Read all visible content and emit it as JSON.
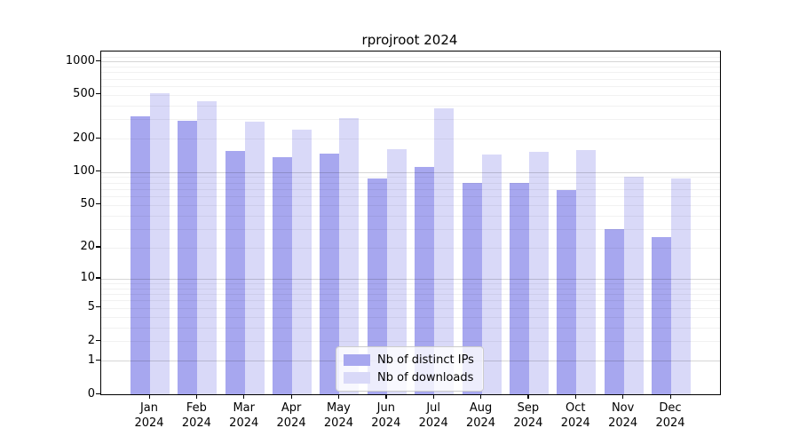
{
  "chart_data": {
    "type": "bar",
    "title": "rprojroot 2024",
    "categories": [
      "Jan",
      "Feb",
      "Mar",
      "Apr",
      "May",
      "Jun",
      "Jul",
      "Aug",
      "Sep",
      "Oct",
      "Nov",
      "Dec"
    ],
    "year": "2024",
    "series": [
      {
        "name": "Nb of distinct IPs",
        "color": "#a7a7ef",
        "values": [
          320,
          292,
          156,
          136,
          146,
          88,
          112,
          80,
          80,
          68,
          30,
          25
        ]
      },
      {
        "name": "Nb of downloads",
        "color": "#d9d9f8",
        "values": [
          520,
          440,
          285,
          240,
          310,
          162,
          378,
          145,
          153,
          157,
          90,
          87
        ]
      }
    ],
    "y_axis": {
      "scale": "log10(1+y)",
      "ticks": [
        1000,
        500,
        200,
        100,
        50,
        20,
        10,
        5,
        2,
        1,
        0
      ],
      "max": 1230
    },
    "grid": {
      "minor": [
        2,
        3,
        4,
        5,
        6,
        7,
        8,
        9,
        20,
        30,
        40,
        50,
        60,
        70,
        80,
        90,
        200,
        300,
        400,
        500,
        600,
        700,
        800,
        900,
        1100
      ],
      "major": [
        1,
        10,
        100,
        1000
      ]
    },
    "legend": {
      "position": "lower-center",
      "entries": [
        "Nb of distinct IPs",
        "Nb of downloads"
      ]
    }
  }
}
